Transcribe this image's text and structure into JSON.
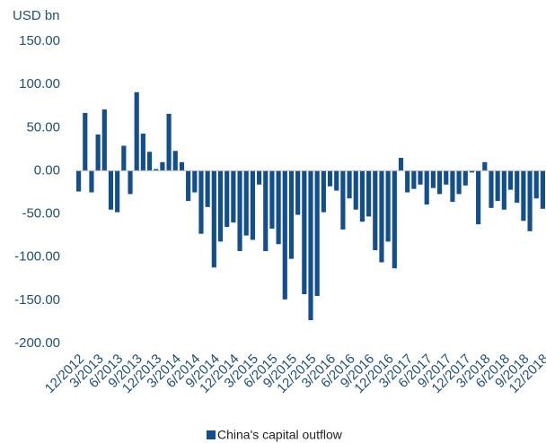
{
  "chart_data": {
    "type": "bar",
    "unit_label": "USD bn",
    "categories": [
      "12/2012",
      null,
      null,
      "3/2013",
      null,
      null,
      "6/2013",
      null,
      null,
      "9/2013",
      null,
      null,
      "12/2013",
      null,
      null,
      "3/2014",
      null,
      null,
      "6/2014",
      null,
      null,
      "9/2014",
      null,
      null,
      "12/2014",
      null,
      null,
      "3/2015",
      null,
      null,
      "6/2015",
      null,
      null,
      "9/2015",
      null,
      null,
      "12/2015",
      null,
      null,
      "3/2016",
      null,
      null,
      "6/2016",
      null,
      null,
      "9/2016",
      null,
      null,
      "12/2016",
      null,
      null,
      "3/2017",
      null,
      null,
      "6/2017",
      null,
      null,
      "9/2017",
      null,
      null,
      "12/2017",
      null,
      null,
      "3/2018",
      null,
      null,
      "6/2018",
      null,
      null,
      "9/2018",
      null,
      null,
      "12/2018"
    ],
    "series": [
      {
        "name": "China's capital outflow",
        "color": "#134f8c",
        "values": [
          -24,
          67,
          -25,
          42,
          71,
          -45,
          -48,
          29,
          -27,
          91,
          43,
          22,
          2,
          10,
          66,
          23,
          10,
          -35,
          -25,
          -73,
          -42,
          -112,
          -82,
          -65,
          -60,
          -93,
          -75,
          -80,
          -16,
          -93,
          -67,
          -85,
          -149,
          -102,
          -51,
          -143,
          -173,
          -145,
          -48,
          -18,
          -23,
          -68,
          -32,
          -45,
          -59,
          -53,
          -92,
          -106,
          -82,
          -113,
          15,
          -25,
          -21,
          -16,
          -39,
          -20,
          -27,
          -16,
          -36,
          -27,
          -17,
          -2,
          -62,
          10,
          -43,
          -35,
          -45,
          -22,
          -37,
          -58,
          -70,
          -32,
          -44
        ]
      }
    ],
    "ylim": [
      -200,
      150
    ],
    "yticks": [
      {
        "value": -200,
        "label": "-200.00"
      },
      {
        "value": -150,
        "label": "-150.00"
      },
      {
        "value": -100,
        "label": "-100.00"
      },
      {
        "value": -50,
        "label": "-50.00"
      },
      {
        "value": 0,
        "label": "0.00"
      },
      {
        "value": 50,
        "label": "50.00"
      },
      {
        "value": 100,
        "label": "100.00"
      },
      {
        "value": 150,
        "label": "150.00"
      }
    ],
    "grid": false,
    "legend": "bottom"
  }
}
